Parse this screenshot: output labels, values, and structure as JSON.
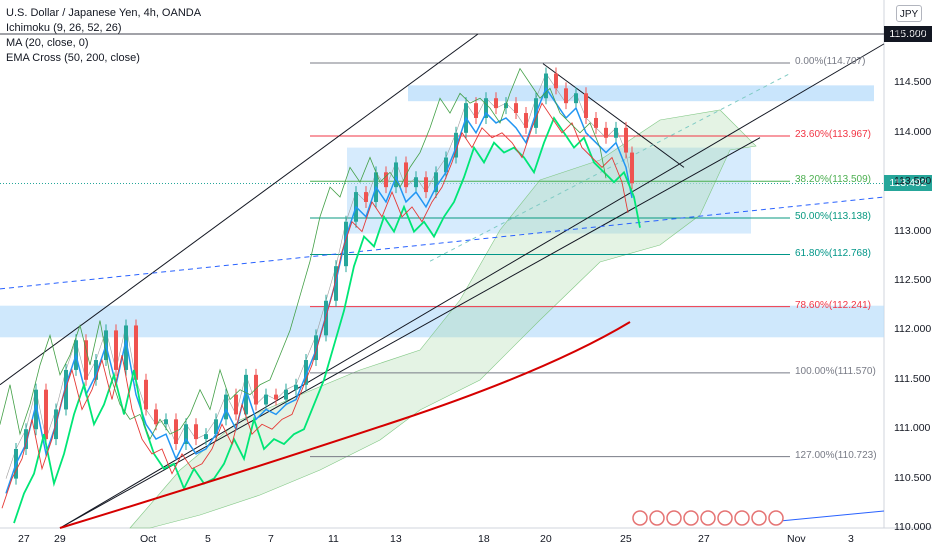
{
  "legend": {
    "symbol": "U.S. Dollar / Japanese Yen, 4h, OANDA",
    "ichimoku": "Ichimoku (9, 26, 52, 26)",
    "ma": "MA (20, close, 0)",
    "ema": "EMA Cross (50, 200, close)"
  },
  "currency": "JPY",
  "price_tags": {
    "top": "115.000",
    "last": "113.492"
  },
  "chart_data": {
    "type": "candlestick",
    "title": "U.S. Dollar / Japanese Yen, 4h, OANDA",
    "y_range": [
      109.85,
      115.25
    ],
    "y_ticks": [
      "115.000",
      "114.500",
      "114.000",
      "113.500",
      "113.000",
      "112.500",
      "112.000",
      "111.500",
      "111.000",
      "110.500",
      "110.000"
    ],
    "x_ticks": [
      "27",
      "29",
      "Oct",
      "5",
      "7",
      "11",
      "13",
      "18",
      "20",
      "25",
      "27",
      "Nov",
      "3"
    ],
    "last_price": 113.492,
    "fib_levels": [
      {
        "label": "0.00%(114.707)",
        "value": 114.707
      },
      {
        "label": "23.60%(113.967)",
        "value": 113.967
      },
      {
        "label": "38.20%(113.509)",
        "value": 113.509
      },
      {
        "label": "50.00%(113.138)",
        "value": 113.138
      },
      {
        "label": "61.80%(112.768)",
        "value": 112.768
      },
      {
        "label": "78.60%(112.241)",
        "value": 112.241
      },
      {
        "label": "100.00%(111.570)",
        "value": 111.57
      },
      {
        "label": "127.00%(110.723)",
        "value": 110.723
      }
    ],
    "price_path": [
      [
        0,
        110.5
      ],
      [
        10,
        110.8
      ],
      [
        20,
        111.0
      ],
      [
        30,
        111.4
      ],
      [
        40,
        110.9
      ],
      [
        50,
        111.2
      ],
      [
        60,
        111.6
      ],
      [
        70,
        111.9
      ],
      [
        80,
        111.5
      ],
      [
        90,
        111.7
      ],
      [
        100,
        112.0
      ],
      [
        110,
        111.6
      ],
      [
        120,
        112.05
      ],
      [
        130,
        111.5
      ],
      [
        140,
        111.2
      ],
      [
        150,
        111.05
      ],
      [
        160,
        111.1
      ],
      [
        170,
        110.85
      ],
      [
        180,
        111.05
      ],
      [
        190,
        110.9
      ],
      [
        200,
        110.95
      ],
      [
        210,
        111.1
      ],
      [
        220,
        111.35
      ],
      [
        230,
        111.15
      ],
      [
        240,
        111.55
      ],
      [
        250,
        111.25
      ],
      [
        260,
        111.35
      ],
      [
        270,
        111.3
      ],
      [
        280,
        111.4
      ],
      [
        290,
        111.45
      ],
      [
        300,
        111.7
      ],
      [
        310,
        111.95
      ],
      [
        320,
        112.3
      ],
      [
        330,
        112.65
      ],
      [
        340,
        113.1
      ],
      [
        350,
        113.4
      ],
      [
        360,
        113.3
      ],
      [
        370,
        113.6
      ],
      [
        380,
        113.45
      ],
      [
        390,
        113.7
      ],
      [
        400,
        113.45
      ],
      [
        410,
        113.55
      ],
      [
        420,
        113.4
      ],
      [
        430,
        113.6
      ],
      [
        440,
        113.75
      ],
      [
        450,
        114.0
      ],
      [
        460,
        114.3
      ],
      [
        470,
        114.15
      ],
      [
        480,
        114.35
      ],
      [
        490,
        114.25
      ],
      [
        500,
        114.3
      ],
      [
        510,
        114.2
      ],
      [
        520,
        114.05
      ],
      [
        530,
        114.35
      ],
      [
        540,
        114.6
      ],
      [
        550,
        114.45
      ],
      [
        560,
        114.3
      ],
      [
        570,
        114.4
      ],
      [
        580,
        114.15
      ],
      [
        590,
        114.05
      ],
      [
        600,
        113.95
      ],
      [
        610,
        114.05
      ],
      [
        620,
        113.8
      ],
      [
        626,
        113.49
      ]
    ]
  }
}
